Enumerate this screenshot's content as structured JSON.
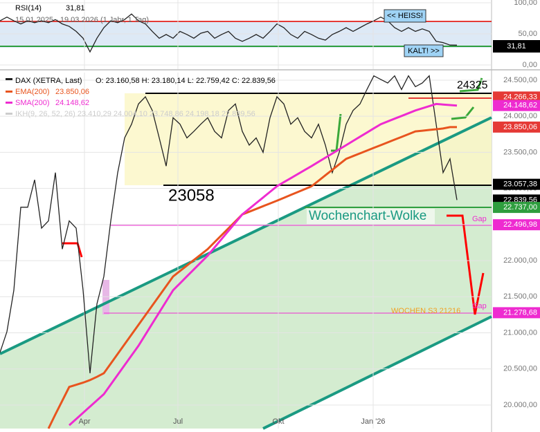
{
  "chart_data": [
    {
      "type": "line",
      "title": "RSI(14)",
      "subtitle": "15.01.2025 - 19.03.2026  (1 Jahr, 1 Tag)",
      "current": "31,81",
      "ylim": [
        -6.7,
        104.4
      ],
      "xlim": [
        0,
        71
      ],
      "yticks": [
        {
          "value": 100,
          "label": "100,00"
        },
        {
          "value": 50,
          "label": "50,00"
        },
        {
          "value": 0,
          "label": "0,00"
        }
      ],
      "levels": [
        {
          "value": 70,
          "color": "#e53935"
        },
        {
          "value": 30,
          "color": "#2e9e3e"
        }
      ],
      "annotations": [
        "<< HEISS!",
        "KALT! >>"
      ],
      "series": [
        {
          "name": "RSI(14)",
          "color": "#222222",
          "values": [
            71,
            77,
            71,
            66,
            71,
            68,
            71,
            68,
            73,
            66,
            62,
            54,
            43,
            21,
            43,
            60,
            71,
            68,
            73,
            82,
            71,
            66,
            54,
            43,
            49,
            43,
            54,
            49,
            43,
            51,
            54,
            43,
            49,
            54,
            43,
            38,
            43,
            49,
            43,
            54,
            66,
            60,
            49,
            43,
            54,
            49,
            43,
            40,
            49,
            54,
            60,
            54,
            60,
            66,
            71,
            77,
            71,
            60,
            54,
            60,
            54,
            58,
            54,
            38,
            36,
            32,
            31.81
          ]
        }
      ]
    },
    {
      "type": "line",
      "ylim": [
        19674,
        24605
      ],
      "xlim": [
        0,
        71
      ],
      "xticks": [
        {
          "value": 12.2,
          "label": "Apr"
        },
        {
          "value": 25.7,
          "label": "Jul"
        },
        {
          "value": 40.2,
          "label": "Okt"
        },
        {
          "value": 53.9,
          "label": "Jan '26"
        }
      ],
      "yticks": [
        {
          "value": 20000,
          "label": "20.000,00"
        },
        {
          "value": 20500,
          "label": "20.500,00"
        },
        {
          "value": 21000,
          "label": "21.000,00"
        },
        {
          "value": 21500,
          "label": "21.500,00"
        },
        {
          "value": 22000,
          "label": "22.000,00"
        },
        {
          "value": 22500,
          "label": "22.500,00"
        },
        {
          "value": 23000,
          "label": "23.000,00"
        },
        {
          "value": 23500,
          "label": "23.500,00"
        },
        {
          "value": 24000,
          "label": "24.000,00"
        },
        {
          "value": 24500,
          "label": "24.500,00"
        }
      ],
      "legend_values": [
        "O: 23.160,58  H: 23.180,14  L: 22.759,42  C: 22.839,56",
        "23.850,06",
        "24.148,62"
      ],
      "ikh_label": "IKH(9, 26, 52, 26)  23.410,29  24.004,10  23.748,86  24.198,18  22.839,56",
      "annotations": [
        "23058",
        "Wochenchart-Wolke",
        "Gap",
        "Gap",
        "WOCHEN S3 21216",
        "24325"
      ],
      "price_tags": [
        {
          "value": 24266.33,
          "label": "24.266,33",
          "color": "#e53935"
        },
        {
          "value": 24148.62,
          "label": "24.148,62",
          "color": "#ee2bd0"
        },
        {
          "value": 23850.06,
          "label": "23.850,06",
          "color": "#e53935"
        },
        {
          "value": 23057.38,
          "label": "23.057,38",
          "color": "#000000"
        },
        {
          "value": 22839.56,
          "label": "22.839,56",
          "color": "#000000"
        },
        {
          "value": 22737.0,
          "label": "22.737,00",
          "color": "#2e9e3e"
        },
        {
          "value": 22496.98,
          "label": "22.496,98",
          "color": "#ee2bd0"
        },
        {
          "value": 21278.68,
          "label": "21.278,68",
          "color": "#ee2bd0"
        }
      ],
      "series": [
        {
          "name": "DAX (XETRA, Last)",
          "color": "#222222",
          "values": [
            20728,
            21015,
            21590,
            22740,
            22740,
            23120,
            22450,
            22550,
            23220,
            22160,
            22550,
            22450,
            21590,
            20440,
            21400,
            21780,
            22550,
            23220,
            23700,
            23890,
            24170,
            24270,
            24080,
            23700,
            23310,
            23980,
            23890,
            23700,
            23790,
            23890,
            23980,
            23790,
            23700,
            24080,
            24170,
            23790,
            23600,
            23700,
            23500,
            23980,
            24270,
            24170,
            23890,
            23980,
            23790,
            23700,
            23890,
            23600,
            23220,
            23500,
            23890,
            24080,
            24170,
            24370,
            24560,
            24510,
            24460,
            24560,
            24370,
            24560,
            24410,
            24460,
            24560,
            23890,
            23220,
            23410,
            22839.56
          ]
        },
        {
          "name": "EMA(200)",
          "color": "#e8541e",
          "values": [
            null,
            null,
            null,
            null,
            null,
            null,
            null,
            19674,
            19870,
            20060,
            20250,
            20280,
            20310,
            20345,
            20390,
            20440,
            20574,
            20708,
            20842,
            20976,
            21110,
            21244,
            21378,
            21512,
            21646,
            21780,
            21856,
            21932,
            22008,
            22084,
            22160,
            22256,
            22352,
            22448,
            22544,
            22640,
            22678,
            22716,
            22754,
            22792,
            22830,
            22870,
            22910,
            22950,
            22990,
            23030,
            23106,
            23182,
            23258,
            23334,
            23410,
            23448,
            23486,
            23524,
            23562,
            23600,
            23638,
            23676,
            23714,
            23752,
            23790,
            23800,
            23810,
            23820,
            23830,
            23850,
            23850
          ]
        },
        {
          "name": "SMA(200)",
          "color": "#ee2bd0",
          "values": [
            null,
            null,
            null,
            null,
            null,
            null,
            null,
            null,
            null,
            null,
            19720,
            19806,
            19892,
            19978,
            20064,
            20150,
            20284,
            20418,
            20552,
            20686,
            20820,
            20974,
            21128,
            21282,
            21436,
            21590,
            21686,
            21782,
            21878,
            21974,
            22070,
            22184,
            22298,
            22412,
            22526,
            22640,
            22718,
            22796,
            22874,
            22952,
            23030,
            23086,
            23142,
            23198,
            23254,
            23310,
            23368,
            23426,
            23484,
            23542,
            23600,
            23658,
            23716,
            23774,
            23832,
            23890,
            23928,
            23966,
            24004,
            24042,
            24080,
            24110,
            24140,
            24170,
            24163,
            24155,
            24148
          ]
        }
      ]
    }
  ]
}
